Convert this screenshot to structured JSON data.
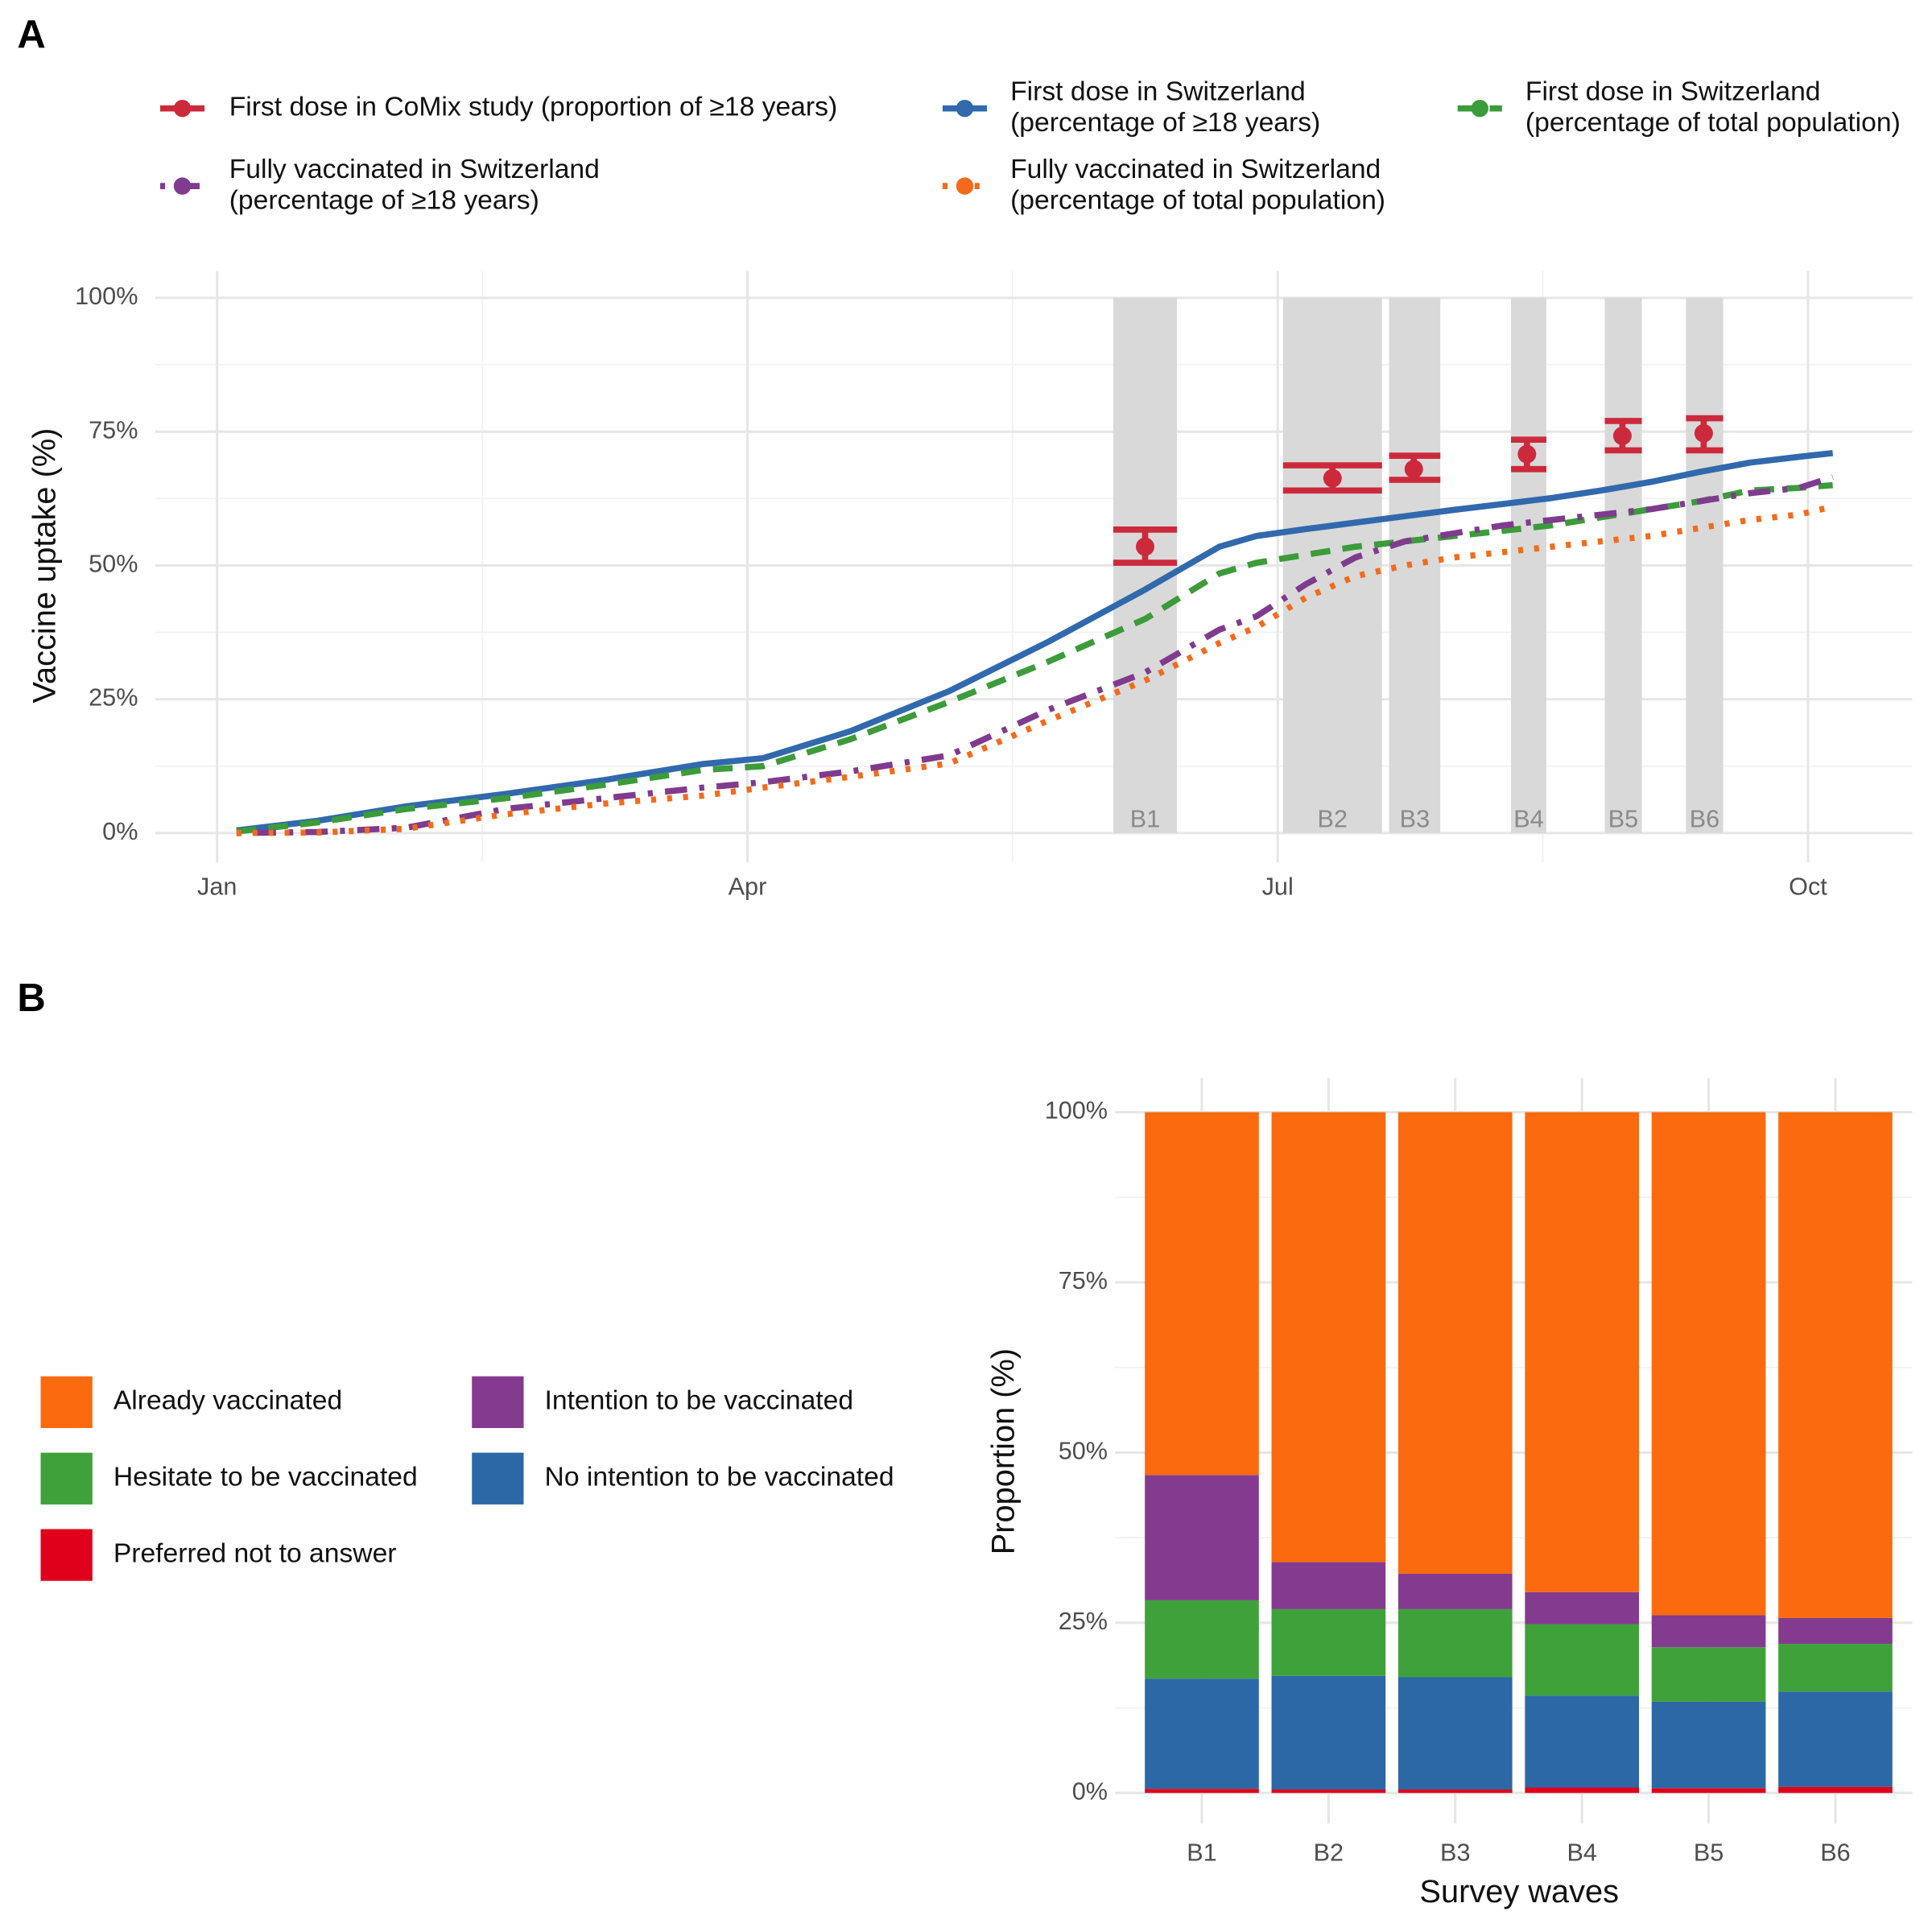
{
  "chart_data": [
    {
      "type": "line",
      "panel_label": "A",
      "y_label": "Vaccine uptake (%)",
      "xlim": [
        0.65,
        10.59
      ],
      "xticks": [
        {
          "value": 1,
          "label": "Jan"
        },
        {
          "value": 4,
          "label": "Apr"
        },
        {
          "value": 7,
          "label": "Jul"
        },
        {
          "value": 10,
          "label": "Oct"
        }
      ],
      "ylim": [
        -5.5,
        105
      ],
      "yticks": [
        {
          "value": 0,
          "label": "0%"
        },
        {
          "value": 25,
          "label": "25%"
        },
        {
          "value": 50,
          "label": "50%"
        },
        {
          "value": 75,
          "label": "75%"
        },
        {
          "value": 100,
          "label": "100%"
        }
      ],
      "grid": true,
      "x": [
        1.11,
        1.57,
        2.07,
        2.63,
        3.19,
        3.75,
        4.09,
        4.58,
        5.14,
        5.7,
        6.25,
        6.67,
        6.88,
        7.16,
        7.44,
        7.72,
        8.0,
        8.28,
        8.55,
        8.83,
        9.11,
        9.39,
        9.67,
        9.95,
        10.14
      ],
      "waves": {
        "labels": [
          "B1",
          "B2",
          "B3",
          "B4",
          "B5",
          "B6"
        ],
        "start": [
          6.07,
          7.03,
          7.63,
          8.32,
          8.85,
          9.31
        ],
        "end": [
          6.43,
          7.59,
          7.92,
          8.52,
          9.06,
          9.52
        ]
      },
      "series": [
        {
          "name": "First dose in CoMix study (proportion of ≥18 years)",
          "color": "#cc2a3c",
          "style": "errorbar",
          "x": [
            6.25,
            7.31,
            7.77,
            8.41,
            8.95,
            9.41
          ],
          "values": [
            53.5,
            66.3,
            68.0,
            70.8,
            74.2,
            74.7
          ],
          "lower": [
            50.5,
            64.0,
            66.0,
            68.0,
            71.5,
            71.5
          ],
          "upper": [
            56.7,
            68.7,
            70.5,
            73.5,
            77.0,
            77.5
          ]
        },
        {
          "name": "First dose in Switzerland\n(percentage of ≥18 years)",
          "color": "#3169ac",
          "style": "solid",
          "values": [
            0.5,
            2.3,
            5.0,
            7.3,
            9.9,
            12.9,
            14.0,
            19.0,
            26.5,
            35.7,
            45.5,
            53.5,
            55.5,
            56.8,
            58.0,
            59.2,
            60.4,
            61.5,
            62.6,
            64.0,
            65.6,
            67.5,
            69.2,
            70.3,
            71.0
          ]
        },
        {
          "name": "First dose in Switzerland\n(percentage of total population)",
          "color": "#3c9b3a",
          "style": "dashed",
          "values": [
            0.3,
            2.0,
            4.5,
            6.5,
            9.0,
            11.8,
            12.5,
            17.5,
            24.5,
            32.0,
            40.0,
            48.5,
            50.5,
            52.0,
            53.5,
            54.5,
            55.5,
            56.5,
            57.5,
            59.0,
            60.5,
            62.0,
            64.0,
            64.5,
            65.0
          ]
        },
        {
          "name": "Fully vaccinated in Switzerland\n(percentage of ≥18 years)",
          "color": "#7f3b8e",
          "style": "dotdash",
          "values": [
            0,
            0.2,
            1.0,
            4.5,
            6.5,
            8.5,
            9.5,
            11.5,
            14.5,
            23.0,
            30.0,
            38.0,
            40.5,
            46.5,
            51.5,
            54.5,
            56.0,
            57.5,
            58.5,
            59.5,
            60.5,
            62.0,
            63.5,
            64.5,
            66.5
          ]
        },
        {
          "name": "Fully vaccinated in Switzerland\n(percentage of total population)",
          "color": "#f26b1c",
          "style": "dotted",
          "values": [
            0,
            0.1,
            0.8,
            3.5,
            5.5,
            7.0,
            8.5,
            10.5,
            13.0,
            21.0,
            28.5,
            35.5,
            38.5,
            44.0,
            48.0,
            50.0,
            51.5,
            52.5,
            53.5,
            54.5,
            55.5,
            57.0,
            58.5,
            59.5,
            61.0
          ]
        }
      ]
    },
    {
      "type": "stacked_bar",
      "panel_label": "B",
      "y_label": "Proportion (%)",
      "x_label": "Survey waves",
      "categories": [
        "B1",
        "B2",
        "B3",
        "B4",
        "B5",
        "B6"
      ],
      "ylim": [
        -4.5,
        105
      ],
      "yticks": [
        {
          "value": 0,
          "label": "0%"
        },
        {
          "value": 25,
          "label": "25%"
        },
        {
          "value": 50,
          "label": "50%"
        },
        {
          "value": 75,
          "label": "75%"
        },
        {
          "value": 100,
          "label": "100%"
        }
      ],
      "grid": true,
      "series": [
        {
          "name": "Preferred not to answer",
          "color": "#e0001b",
          "values": [
            0.6,
            0.5,
            0.5,
            0.8,
            0.7,
            0.9
          ]
        },
        {
          "name": "No intention to be vaccinated",
          "color": "#2c68a6",
          "values": [
            16.2,
            16.7,
            16.5,
            13.5,
            12.7,
            14.0
          ]
        },
        {
          "name": "Hesitate to be vaccinated",
          "color": "#3fa13a",
          "values": [
            11.5,
            9.8,
            10.0,
            10.5,
            8.0,
            7.0
          ]
        },
        {
          "name": "Intention to be vaccinated",
          "color": "#843b8f",
          "values": [
            18.4,
            6.9,
            5.2,
            4.7,
            4.7,
            3.8
          ]
        },
        {
          "name": "Already vaccinated",
          "color": "#fb6a0e",
          "values": [
            53.3,
            66.1,
            67.8,
            70.5,
            73.9,
            74.3
          ]
        }
      ]
    }
  ]
}
